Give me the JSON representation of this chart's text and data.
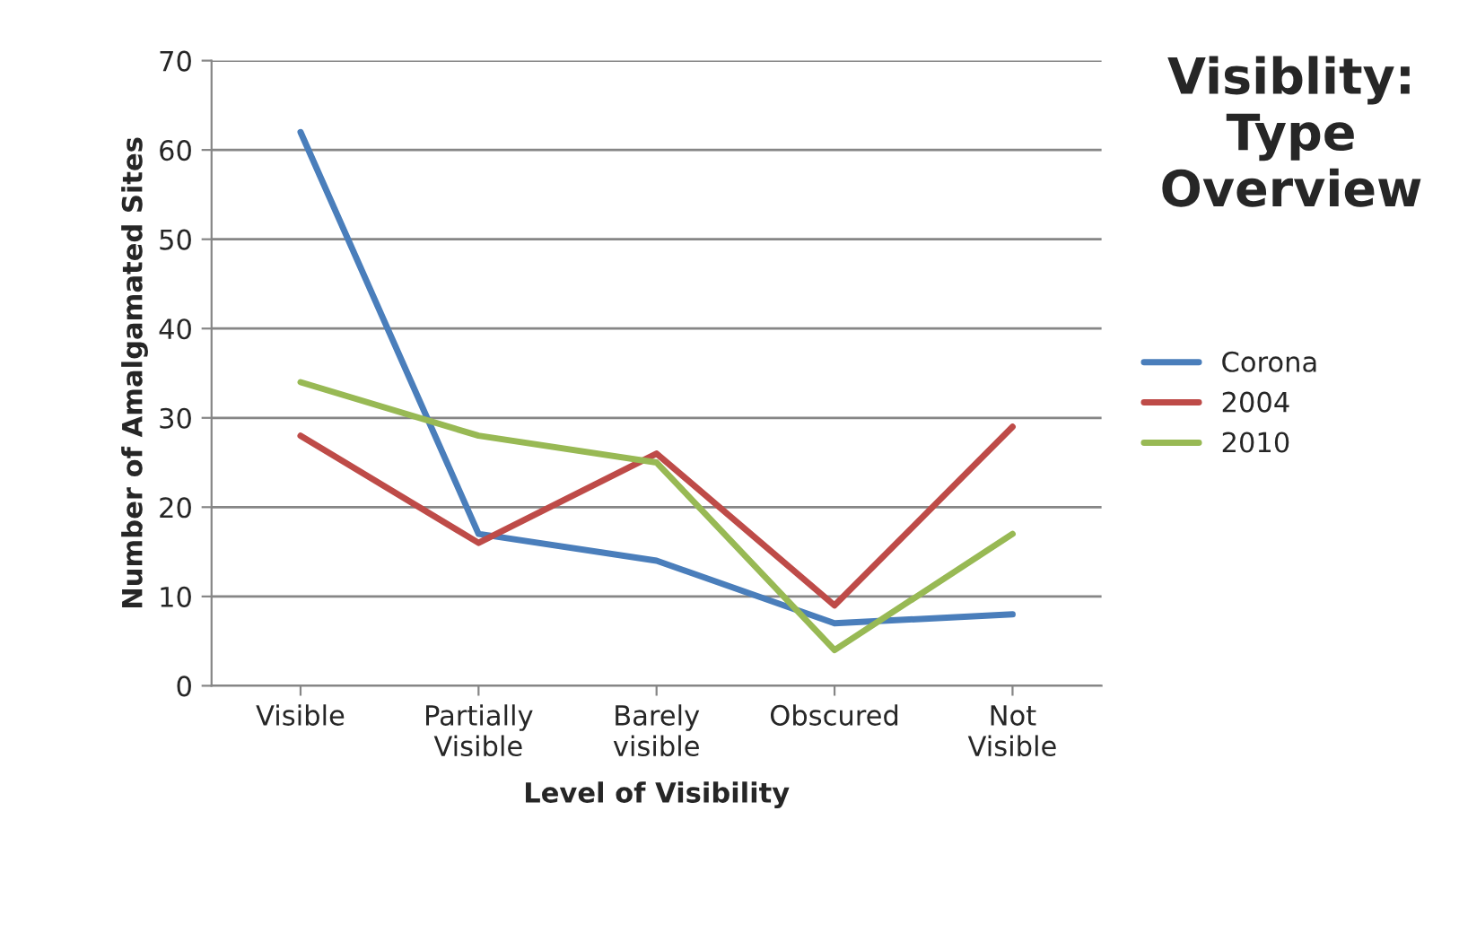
{
  "chart_data": {
    "type": "line",
    "title": "Visiblity: Type Overview",
    "xlabel": "Level of Visibility",
    "ylabel": "Number of Amalgamated Sites",
    "categories": [
      "Visible",
      "Partially\nVisible",
      "Barely\nvisible",
      "Obscured",
      "Not\nVisible"
    ],
    "series": [
      {
        "name": "Corona",
        "color": "#4a7ebb",
        "values": [
          62,
          17,
          14,
          7,
          8
        ]
      },
      {
        "name": "2004",
        "color": "#be4b48",
        "values": [
          28,
          16,
          26,
          9,
          29
        ]
      },
      {
        "name": "2010",
        "color": "#98b954",
        "values": [
          34,
          28,
          25,
          4,
          17
        ]
      }
    ],
    "ylim": [
      0,
      70
    ],
    "yticks": [
      0,
      10,
      20,
      30,
      40,
      50,
      60,
      70
    ],
    "grid": "y",
    "legend": "right",
    "marker": "none",
    "line_style": "solid"
  }
}
